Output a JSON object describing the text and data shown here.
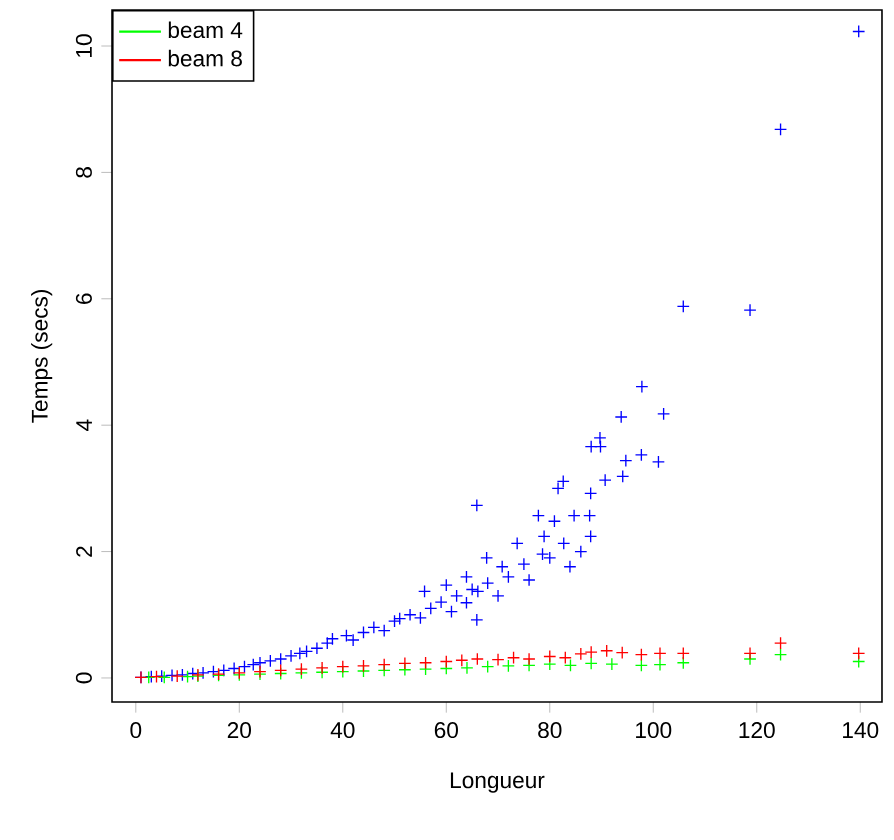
{
  "chart_data": {
    "type": "scatter",
    "xlabel": "Longueur",
    "ylabel": "Temps (secs)",
    "xlim": [
      -4.6,
      144.2
    ],
    "ylim": [
      -0.38,
      10.57
    ],
    "xticks": [
      0,
      20,
      40,
      60,
      80,
      100,
      120,
      140
    ],
    "yticks": [
      0,
      2,
      4,
      6,
      8,
      10
    ],
    "legend": "top left",
    "marker": "cross",
    "series": [
      {
        "color": "#0000ff",
        "x": [
          1,
          3,
          5,
          7,
          9,
          11,
          13,
          15,
          17,
          19,
          21,
          22.7,
          24,
          26,
          28,
          30,
          31.7,
          33,
          35,
          37,
          38,
          40.7,
          42,
          44,
          46,
          48,
          50,
          51,
          53,
          55,
          55.8,
          57,
          59,
          60,
          61,
          62,
          63.9,
          63.9,
          65,
          65.9,
          65.9,
          66.1,
          67.8,
          68,
          70,
          70.8,
          72,
          73.7,
          75,
          76,
          77.8,
          78.6,
          78.9,
          80,
          80.9,
          81.6,
          82.6,
          82.7,
          83.9,
          84.7,
          86,
          87.7,
          87.9,
          87.9,
          88,
          89.7,
          89.8,
          90.7,
          93.8,
          94.1,
          94.7,
          97.7,
          97.8,
          101,
          102,
          105.8,
          118.7,
          124.6,
          139.7
        ],
        "values": [
          0.01,
          0.02,
          0.03,
          0.04,
          0.05,
          0.07,
          0.08,
          0.1,
          0.12,
          0.15,
          0.18,
          0.21,
          0.24,
          0.27,
          0.3,
          0.35,
          0.39,
          0.42,
          0.47,
          0.55,
          0.62,
          0.67,
          0.6,
          0.72,
          0.8,
          0.75,
          0.9,
          0.94,
          1.0,
          0.95,
          1.37,
          1.1,
          1.2,
          1.47,
          1.05,
          1.3,
          1.6,
          1.19,
          1.4,
          0.92,
          2.73,
          1.37,
          1.9,
          1.5,
          1.3,
          1.76,
          1.6,
          2.13,
          1.8,
          1.55,
          2.57,
          1.96,
          2.24,
          1.9,
          2.48,
          3.0,
          3.11,
          2.13,
          1.76,
          2.57,
          2.0,
          2.57,
          2.92,
          2.24,
          3.66,
          3.8,
          3.66,
          3.13,
          4.13,
          3.19,
          3.44,
          3.53,
          4.61,
          3.42,
          4.18,
          5.88,
          5.82,
          8.68,
          10.23
        ]
      },
      {
        "name": "beam 4",
        "color": "#00ff00",
        "x": [
          2.5,
          5.5,
          10,
          12,
          16,
          20,
          24,
          28,
          32,
          36,
          40,
          44,
          48,
          52,
          56,
          60,
          64,
          68,
          72,
          76,
          80,
          84,
          88,
          92,
          97.7,
          101.3,
          105.8,
          118.7,
          124.6,
          139.7
        ],
        "values": [
          0.01,
          0.01,
          0.02,
          0.03,
          0.04,
          0.05,
          0.06,
          0.07,
          0.08,
          0.09,
          0.1,
          0.11,
          0.12,
          0.13,
          0.14,
          0.15,
          0.16,
          0.18,
          0.19,
          0.2,
          0.22,
          0.2,
          0.23,
          0.22,
          0.2,
          0.21,
          0.24,
          0.3,
          0.37,
          0.26
        ]
      },
      {
        "name": "beam 8",
        "color": "#ff0000",
        "x": [
          1,
          4,
          8,
          12,
          16,
          20,
          24,
          28,
          32,
          36,
          40,
          44,
          48,
          52,
          56,
          60,
          63,
          66,
          70,
          73,
          76,
          80,
          83,
          86,
          88,
          91,
          94,
          97.7,
          101.3,
          105.8,
          118.7,
          124.6,
          139.7
        ],
        "values": [
          0.01,
          0.02,
          0.03,
          0.05,
          0.06,
          0.08,
          0.1,
          0.12,
          0.14,
          0.16,
          0.18,
          0.19,
          0.21,
          0.23,
          0.24,
          0.26,
          0.28,
          0.3,
          0.29,
          0.32,
          0.3,
          0.34,
          0.32,
          0.38,
          0.41,
          0.43,
          0.4,
          0.37,
          0.39,
          0.39,
          0.39,
          0.55,
          0.39
        ]
      }
    ]
  }
}
